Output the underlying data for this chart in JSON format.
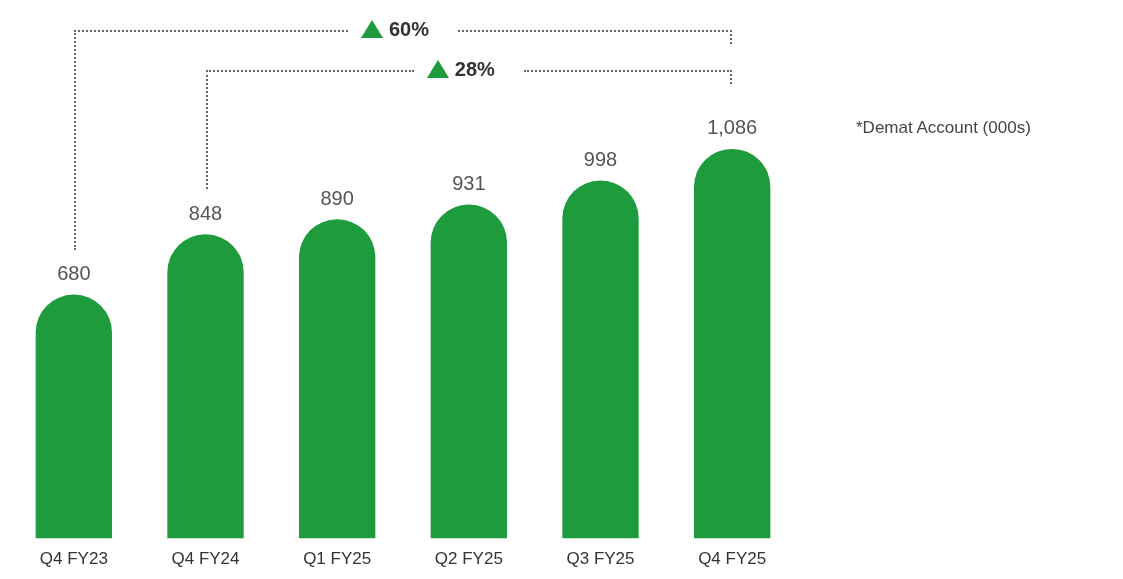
{
  "chart_data": {
    "type": "bar",
    "categories": [
      "Q4 FY23",
      "Q4 FY24",
      "Q1 FY25",
      "Q2 FY25",
      "Q3 FY25",
      "Q4 FY25"
    ],
    "values": [
      680,
      848,
      890,
      931,
      998,
      1086
    ],
    "color": "#1e9b3c",
    "value_labels": [
      "680",
      "848",
      "890",
      "931",
      "998",
      "1,086"
    ],
    "annotations": [
      "60%",
      "28%",
      "*Demat Account (000s)"
    ]
  }
}
